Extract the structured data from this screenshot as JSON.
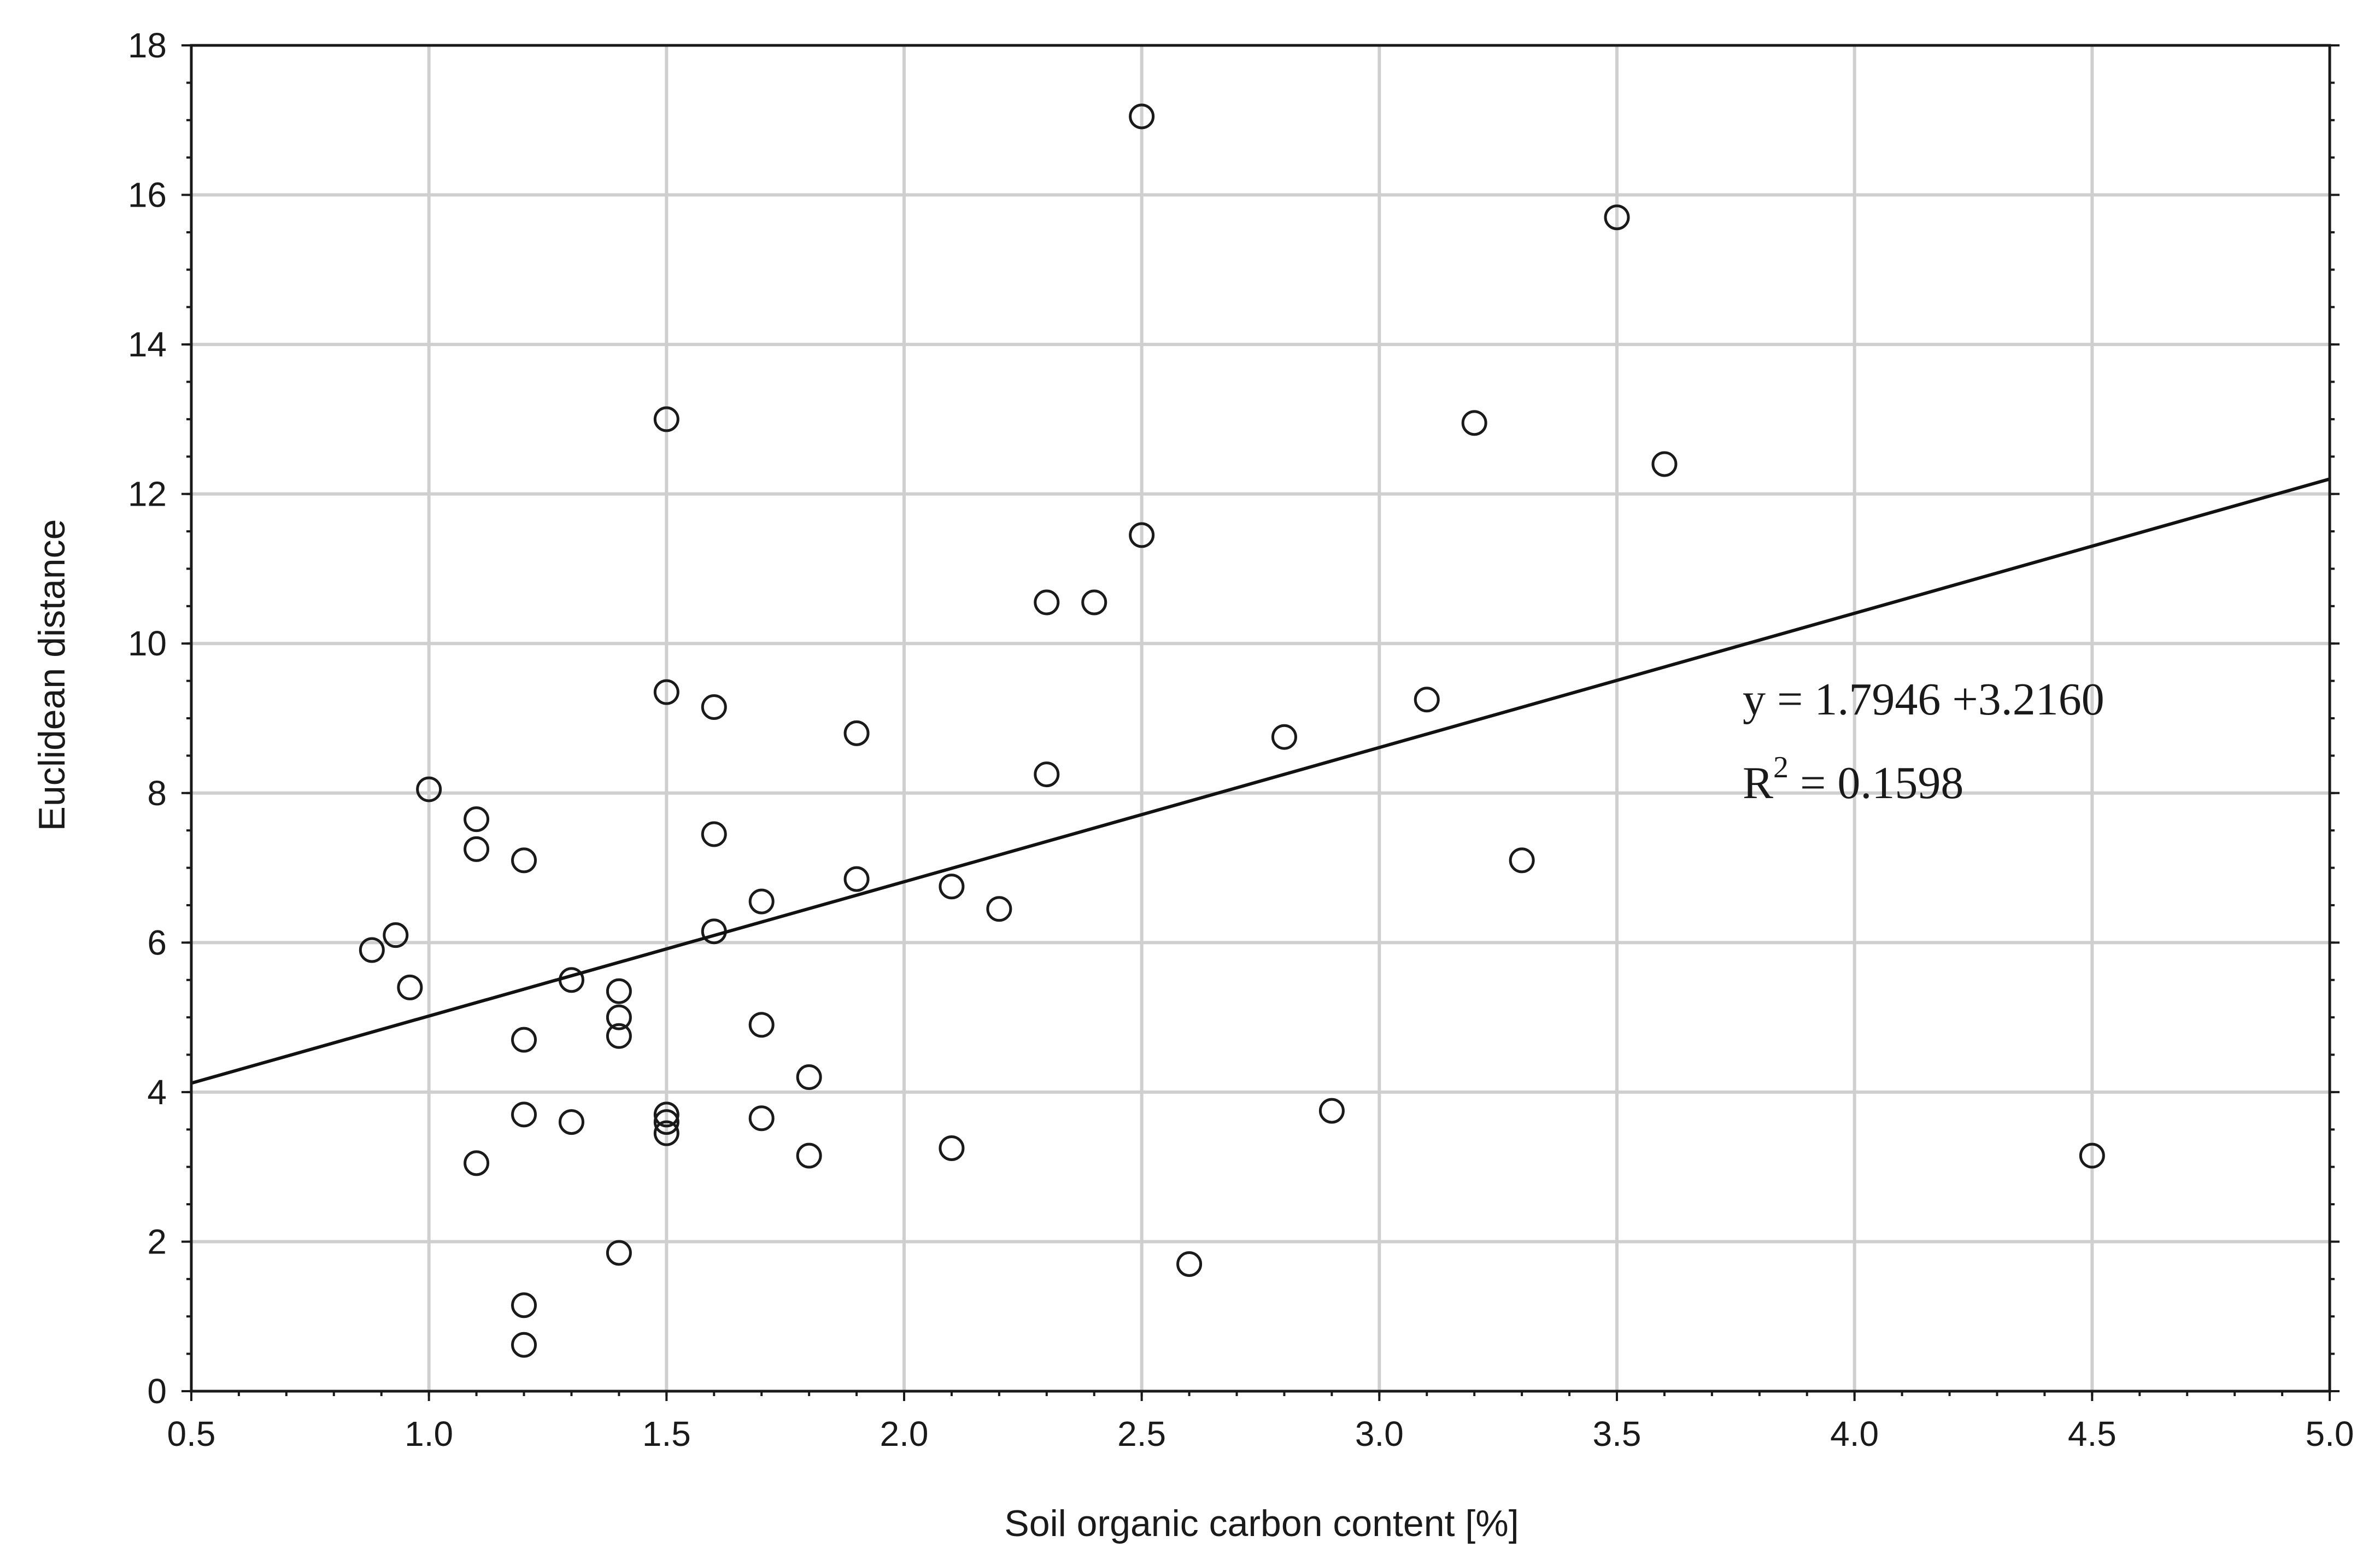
{
  "chart_data": {
    "type": "scatter",
    "title": "",
    "xlabel": "Soil organic carbon content [%]",
    "ylabel": "Euclidean distance",
    "xlim": [
      0.5,
      5.0
    ],
    "ylim": [
      0,
      18
    ],
    "x_ticks": [
      "0.5",
      "1.0",
      "1.5",
      "2.0",
      "2.5",
      "3.0",
      "3.5",
      "4.0",
      "4.5",
      "5.0"
    ],
    "y_ticks": [
      "0",
      "2",
      "4",
      "6",
      "8",
      "10",
      "12",
      "14",
      "16",
      "18"
    ],
    "grid": true,
    "points": [
      [
        0.88,
        5.9
      ],
      [
        0.93,
        6.1
      ],
      [
        0.96,
        5.4
      ],
      [
        1.0,
        8.05
      ],
      [
        1.1,
        7.65
      ],
      [
        1.1,
        7.25
      ],
      [
        1.1,
        3.05
      ],
      [
        1.2,
        7.1
      ],
      [
        1.2,
        4.7
      ],
      [
        1.2,
        3.7
      ],
      [
        1.2,
        1.15
      ],
      [
        1.2,
        0.62
      ],
      [
        1.3,
        5.5
      ],
      [
        1.3,
        3.6
      ],
      [
        1.4,
        5.35
      ],
      [
        1.4,
        5.0
      ],
      [
        1.4,
        4.75
      ],
      [
        1.4,
        1.85
      ],
      [
        1.5,
        13.0
      ],
      [
        1.5,
        9.35
      ],
      [
        1.5,
        3.7
      ],
      [
        1.5,
        3.6
      ],
      [
        1.5,
        3.45
      ],
      [
        1.6,
        9.15
      ],
      [
        1.6,
        7.45
      ],
      [
        1.6,
        6.15
      ],
      [
        1.7,
        6.55
      ],
      [
        1.7,
        4.9
      ],
      [
        1.7,
        3.65
      ],
      [
        1.8,
        4.2
      ],
      [
        1.8,
        3.15
      ],
      [
        1.9,
        8.8
      ],
      [
        1.9,
        6.85
      ],
      [
        2.1,
        6.75
      ],
      [
        2.1,
        3.25
      ],
      [
        2.2,
        6.45
      ],
      [
        2.3,
        10.55
      ],
      [
        2.3,
        8.25
      ],
      [
        2.4,
        10.55
      ],
      [
        2.5,
        17.05
      ],
      [
        2.5,
        11.45
      ],
      [
        2.6,
        1.7
      ],
      [
        2.8,
        8.75
      ],
      [
        2.9,
        3.75
      ],
      [
        3.1,
        9.25
      ],
      [
        3.2,
        12.95
      ],
      [
        3.3,
        7.1
      ],
      [
        3.5,
        15.7
      ],
      [
        3.6,
        12.4
      ],
      [
        4.5,
        3.15
      ]
    ],
    "trendline": {
      "x": [
        0.5,
        5.0
      ],
      "y": [
        4.12,
        12.2
      ]
    },
    "annotations": {
      "equation": "y = 1.7946 +3.2160",
      "r2_prefix": "R",
      "r2_sup": "2",
      "r2_value": " = 0.1598"
    }
  }
}
